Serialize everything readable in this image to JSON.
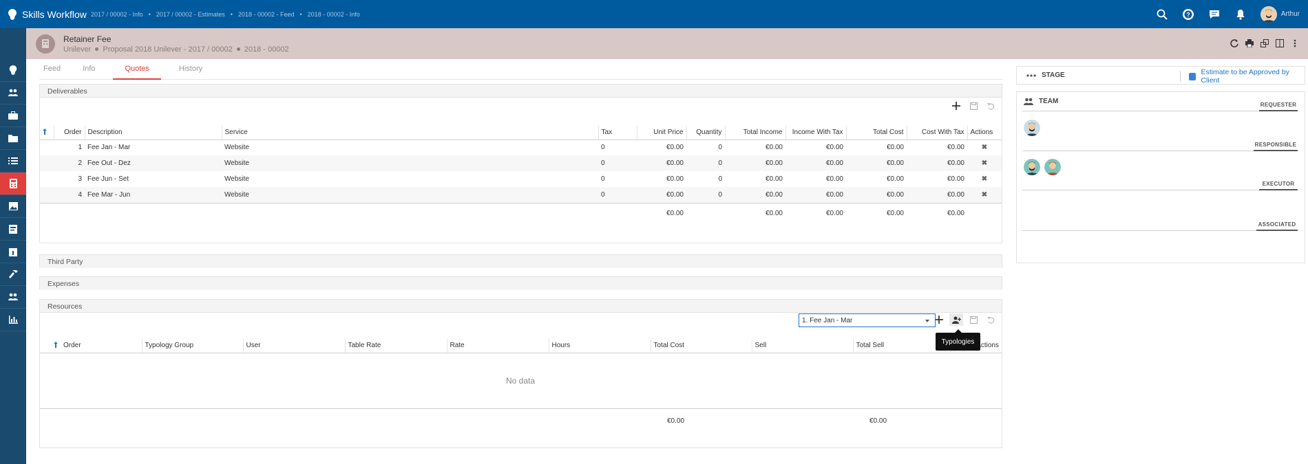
{
  "app": {
    "title": "Skills Workflow",
    "breadcrumbs": [
      "2017 / 00002 - Info",
      "2017 / 00002 - Estimates",
      "2018 - 00002 - Feed",
      "2018 - 00002 - Info"
    ],
    "user_name": "Arthur"
  },
  "header": {
    "title": "Retainer Fee",
    "sub": [
      "Unilever",
      "Proposal 2018 Unilever - 2017 / 00002",
      "2018 - 00002"
    ]
  },
  "tabs": [
    "Feed",
    "Info",
    "Quotes",
    "History"
  ],
  "active_tab": "Quotes",
  "deliverables": {
    "title": "Deliverables",
    "columns": [
      "Order",
      "Description",
      "Service",
      "Tax",
      "Unit Price",
      "Quantity",
      "Total Income",
      "Income With Tax",
      "Total Cost",
      "Cost With Tax",
      "Actions"
    ],
    "rows": [
      {
        "order": "1",
        "description": "Fee Jan - Mar",
        "service": "Website",
        "tax": "0",
        "unit_price": "€0.00",
        "quantity": "0",
        "total_income": "€0.00",
        "income_with_tax": "€0.00",
        "total_cost": "€0.00",
        "cost_with_tax": "€0.00"
      },
      {
        "order": "2",
        "description": "Fee Out - Dez",
        "service": "Website",
        "tax": "0",
        "unit_price": "€0.00",
        "quantity": "0",
        "total_income": "€0.00",
        "income_with_tax": "€0.00",
        "total_cost": "€0.00",
        "cost_with_tax": "€0.00"
      },
      {
        "order": "3",
        "description": "Fee Jun - Set",
        "service": "Website",
        "tax": "0",
        "unit_price": "€0.00",
        "quantity": "0",
        "total_income": "€0.00",
        "income_with_tax": "€0.00",
        "total_cost": "€0.00",
        "cost_with_tax": "€0.00"
      },
      {
        "order": "4",
        "description": "Fee Mar - Jun",
        "service": "Website",
        "tax": "0",
        "unit_price": "€0.00",
        "quantity": "0",
        "total_income": "€0.00",
        "income_with_tax": "€0.00",
        "total_cost": "€0.00",
        "cost_with_tax": "€0.00"
      }
    ],
    "totals": {
      "unit_price": "€0.00",
      "total_income": "€0.00",
      "income_with_tax": "€0.00",
      "total_cost": "€0.00",
      "cost_with_tax": "€0.00"
    }
  },
  "third_party": {
    "title": "Third Party"
  },
  "expenses": {
    "title": "Expenses"
  },
  "resources": {
    "title": "Resources",
    "selected_deliverable": "1. Fee Jan - Mar",
    "tooltip": "Typologies",
    "columns": [
      "Order",
      "Typology Group",
      "User",
      "Table Rate",
      "Rate",
      "Hours",
      "Total Cost",
      "Sell",
      "Total Sell",
      "Actions"
    ],
    "empty_text": "No data",
    "totals": {
      "total_cost": "€0.00",
      "total_sell": "€0.00"
    }
  },
  "stage": {
    "label": "STAGE",
    "checkbox_label": "Estimate to be Approved by Client",
    "checked": true
  },
  "team": {
    "label": "TEAM",
    "roles": [
      "REQUESTER",
      "RESPONSIBLE",
      "EXECUTOR",
      "ASSOCIATED"
    ]
  }
}
